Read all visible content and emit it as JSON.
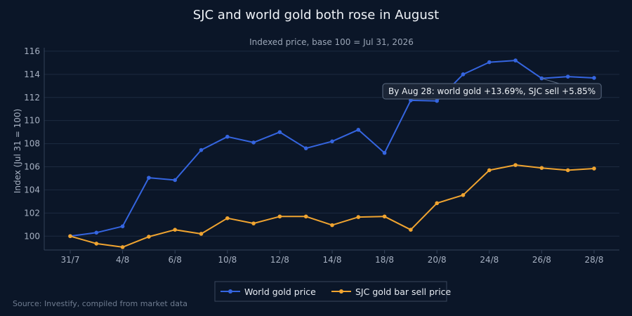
{
  "colors": {
    "background": "#0b1628",
    "world": "#3565e0",
    "sjc": "#f0a430"
  },
  "chart_data": {
    "type": "line",
    "title": "SJC and world gold both rose in August",
    "subtitle": "Indexed price, base 100 = Jul 31, 2026",
    "xlabel": "",
    "ylabel": "Index (Jul 31 = 100)",
    "ylim": [
      98.8,
      116.3
    ],
    "y_ticks": [
      100,
      102,
      104,
      106,
      108,
      110,
      112,
      114,
      116
    ],
    "grid": true,
    "legend_position": "bottom-center",
    "x": [
      "31/7",
      "3/8",
      "4/8",
      "5/8",
      "6/8",
      "7/8",
      "10/8",
      "11/8",
      "12/8",
      "13/8",
      "14/8",
      "17/8",
      "18/8",
      "19/8",
      "20/8",
      "21/8",
      "24/8",
      "25/8",
      "26/8",
      "27/8",
      "28/8"
    ],
    "x_tick_labels": [
      "31/7",
      "4/8",
      "6/8",
      "10/8",
      "12/8",
      "14/8",
      "18/8",
      "20/8",
      "24/8",
      "26/8",
      "28/8"
    ],
    "series": [
      {
        "name": "World gold price",
        "color": "#3565e0",
        "values": [
          100.0,
          100.3,
          100.85,
          105.05,
          104.85,
          107.45,
          108.6,
          108.1,
          109.0,
          107.6,
          108.2,
          109.2,
          107.2,
          111.75,
          111.7,
          114.0,
          115.05,
          115.2,
          113.65,
          113.8,
          113.69
        ]
      },
      {
        "name": "SJC gold bar sell price",
        "color": "#f0a430",
        "values": [
          100.0,
          99.35,
          99.05,
          99.95,
          100.55,
          100.2,
          101.55,
          101.1,
          101.7,
          101.7,
          100.95,
          101.65,
          101.7,
          100.55,
          102.85,
          103.55,
          105.7,
          106.15,
          105.9,
          105.7,
          105.85
        ]
      }
    ],
    "annotation": {
      "text": "By Aug 28: world gold +13.69%, SJC sell +5.85%",
      "point_index": 18
    },
    "source": "Source: Investify, compiled from market data"
  }
}
